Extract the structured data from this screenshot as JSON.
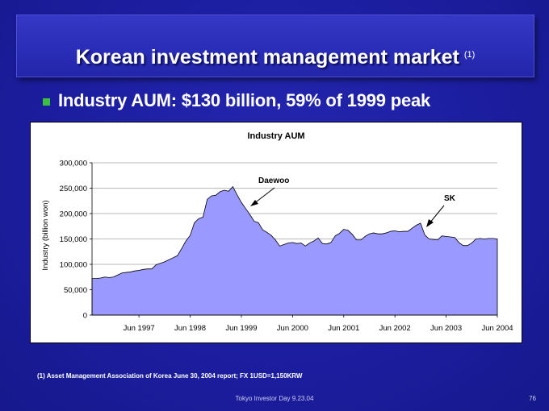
{
  "slide": {
    "title": "Korean investment management market",
    "title_footnote_marker": "(1)",
    "bullet": "Industry AUM:  $130 billion, 59% of 1999 peak",
    "footnote": "(1)  Asset Management Association of Korea June 30, 2004 report; FX 1USD=1,150KRW",
    "footer": "Tokyo Investor Day 9.23.04",
    "page_number": "76"
  },
  "colors": {
    "background": "#1d1fa4",
    "area_fill": "#9999ff",
    "bullet": "#3cbf3c"
  },
  "chart_data": {
    "type": "area",
    "title": "Industry AUM",
    "xlabel": "",
    "ylabel": "Industry (billion won)",
    "ylim": [
      0,
      300000
    ],
    "yticks": [
      "0",
      "50,000",
      "100,000",
      "150,000",
      "200,000",
      "250,000",
      "300,000"
    ],
    "ytick_values": [
      0,
      50000,
      100000,
      150000,
      200000,
      250000,
      300000
    ],
    "xticks": [
      "Jun 1997",
      "Jun 1998",
      "Jun 1999",
      "Jun 2000",
      "Jun 2001",
      "Jun 2002",
      "Jun 2003",
      "Jun 2004"
    ],
    "grid": "horizontal",
    "start": "1996-07",
    "end": "2004-06",
    "series": [
      {
        "values": [
          72000,
          72000,
          73000,
          75000,
          74000,
          75000,
          79000,
          83000,
          84000,
          85000,
          87000,
          88000,
          90000,
          91000,
          91000,
          99000,
          102000,
          105000,
          109000,
          113000,
          117000,
          131000,
          146000,
          157000,
          182000,
          190000,
          193000,
          228000,
          235000,
          236000,
          243000,
          246000,
          244000,
          253000,
          237000,
          222000,
          210000,
          198000,
          185000,
          182000,
          168000,
          163000,
          157000,
          148000,
          136000,
          139000,
          142000,
          143000,
          141000,
          142000,
          136000,
          142000,
          146000,
          152000,
          141000,
          140000,
          143000,
          156000,
          161000,
          169000,
          167000,
          159000,
          148000,
          148000,
          155000,
          160000,
          162000,
          160000,
          160000,
          162000,
          165000,
          166000,
          164000,
          165000,
          165000,
          171000,
          177000,
          181000,
          158000,
          150000,
          149000,
          148000,
          156000,
          155000,
          154000,
          153000,
          143000,
          137000,
          137000,
          142000,
          150000,
          151000,
          150000,
          151000,
          151000,
          150000
        ]
      }
    ],
    "annotations": [
      {
        "text": "Daewoo"
      },
      {
        "text": "SK"
      }
    ]
  }
}
